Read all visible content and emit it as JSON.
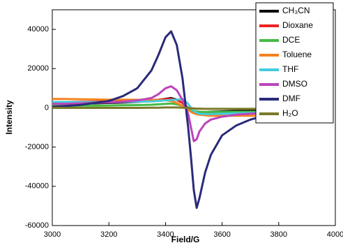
{
  "chart_data": {
    "type": "line",
    "xlabel": "Field/G",
    "ylabel": "Intensity",
    "x": [
      3000,
      3050,
      3100,
      3150,
      3200,
      3250,
      3300,
      3350,
      3375,
      3400,
      3420,
      3440,
      3460,
      3480,
      3490,
      3500,
      3510,
      3520,
      3540,
      3560,
      3600,
      3650,
      3700,
      3750,
      3800,
      3850,
      3900,
      3950,
      3980
    ],
    "xlim": [
      3000,
      4000
    ],
    "xticks": [
      3000,
      3200,
      3400,
      3600,
      3800,
      4000
    ],
    "ylim": [
      -60000,
      50000
    ],
    "yticks": [
      -60000,
      -40000,
      -20000,
      0,
      20000,
      40000
    ],
    "series": [
      {
        "name": "CH₃CN",
        "color": "#000000",
        "values": [
          2000,
          2100,
          2200,
          2300,
          2500,
          2700,
          3000,
          3600,
          4000,
          4600,
          5000,
          4200,
          2500,
          -500,
          -1500,
          -2200,
          -2500,
          -2400,
          -2200,
          -2000,
          -1800,
          -1600,
          -1500,
          -1400,
          -1300,
          -1200,
          -1100,
          -1000,
          -1000
        ]
      },
      {
        "name": "Dioxane",
        "color": "#ee2222",
        "values": [
          3000,
          3000,
          3100,
          3200,
          3300,
          3500,
          3700,
          4000,
          4200,
          4500,
          4600,
          4000,
          2500,
          0,
          -800,
          -1500,
          -1800,
          -2000,
          -2200,
          -2200,
          -2200,
          -2200,
          -2100,
          -2100,
          -2000,
          -2000,
          -2000,
          -2000,
          -2000
        ]
      },
      {
        "name": "DCE",
        "color": "#44bb44",
        "values": [
          1000,
          1000,
          1100,
          1100,
          1200,
          1300,
          1400,
          1600,
          1800,
          2000,
          2200,
          1800,
          1000,
          -500,
          -1000,
          -1500,
          -1800,
          -2000,
          -2100,
          -2100,
          -2000,
          -2000,
          -2000,
          -2000,
          -1900,
          -1900,
          -1900,
          -1800,
          -1800
        ]
      },
      {
        "name": "Toluene",
        "color": "#f58220",
        "values": [
          4500,
          4500,
          4400,
          4300,
          4200,
          4200,
          4100,
          4000,
          4000,
          3800,
          3500,
          2500,
          1000,
          -1000,
          -2000,
          -2800,
          -3200,
          -3500,
          -3800,
          -4000,
          -4000,
          -4000,
          -4000,
          -4000,
          -4000,
          -4000,
          -4000,
          -4000,
          -4000
        ]
      },
      {
        "name": "THF",
        "color": "#44ccdd",
        "values": [
          3000,
          3000,
          2900,
          2900,
          2900,
          3000,
          3100,
          3300,
          3500,
          3800,
          4000,
          4200,
          4500,
          2000,
          0,
          -1500,
          -2500,
          -3000,
          -3200,
          -3200,
          -3000,
          -2800,
          -2600,
          -2500,
          -2400,
          -2300,
          -2200,
          -2200,
          -2200
        ]
      },
      {
        "name": "DMSO",
        "color": "#bb44bb",
        "values": [
          2000,
          2100,
          2300,
          2500,
          2800,
          3200,
          3800,
          5000,
          7000,
          10000,
          11000,
          9000,
          4000,
          -3000,
          -10000,
          -17000,
          -16000,
          -12000,
          -8000,
          -6000,
          -4500,
          -3500,
          -3000,
          -2600,
          -2400,
          -2200,
          -2100,
          -2000,
          -2000
        ]
      },
      {
        "name": "DMF",
        "color": "#2a2a7a",
        "values": [
          500,
          1000,
          1500,
          2500,
          3500,
          6000,
          10000,
          19000,
          27000,
          36000,
          39000,
          32000,
          15000,
          -10000,
          -25000,
          -42000,
          -51000,
          -46000,
          -33000,
          -24000,
          -14000,
          -9000,
          -6000,
          -4000,
          -3000,
          -2000,
          -1500,
          -1000,
          -800
        ]
      },
      {
        "name": "H₂O",
        "color": "#7a7a2a",
        "values": [
          0,
          0,
          0,
          0,
          0,
          0,
          0,
          100,
          100,
          200,
          200,
          200,
          100,
          0,
          -200,
          -300,
          -400,
          -400,
          -500,
          -500,
          -500,
          -500,
          -500,
          -500,
          -500,
          -500,
          -500,
          -500,
          -500
        ]
      }
    ],
    "legend": "upper right",
    "grid": false
  }
}
